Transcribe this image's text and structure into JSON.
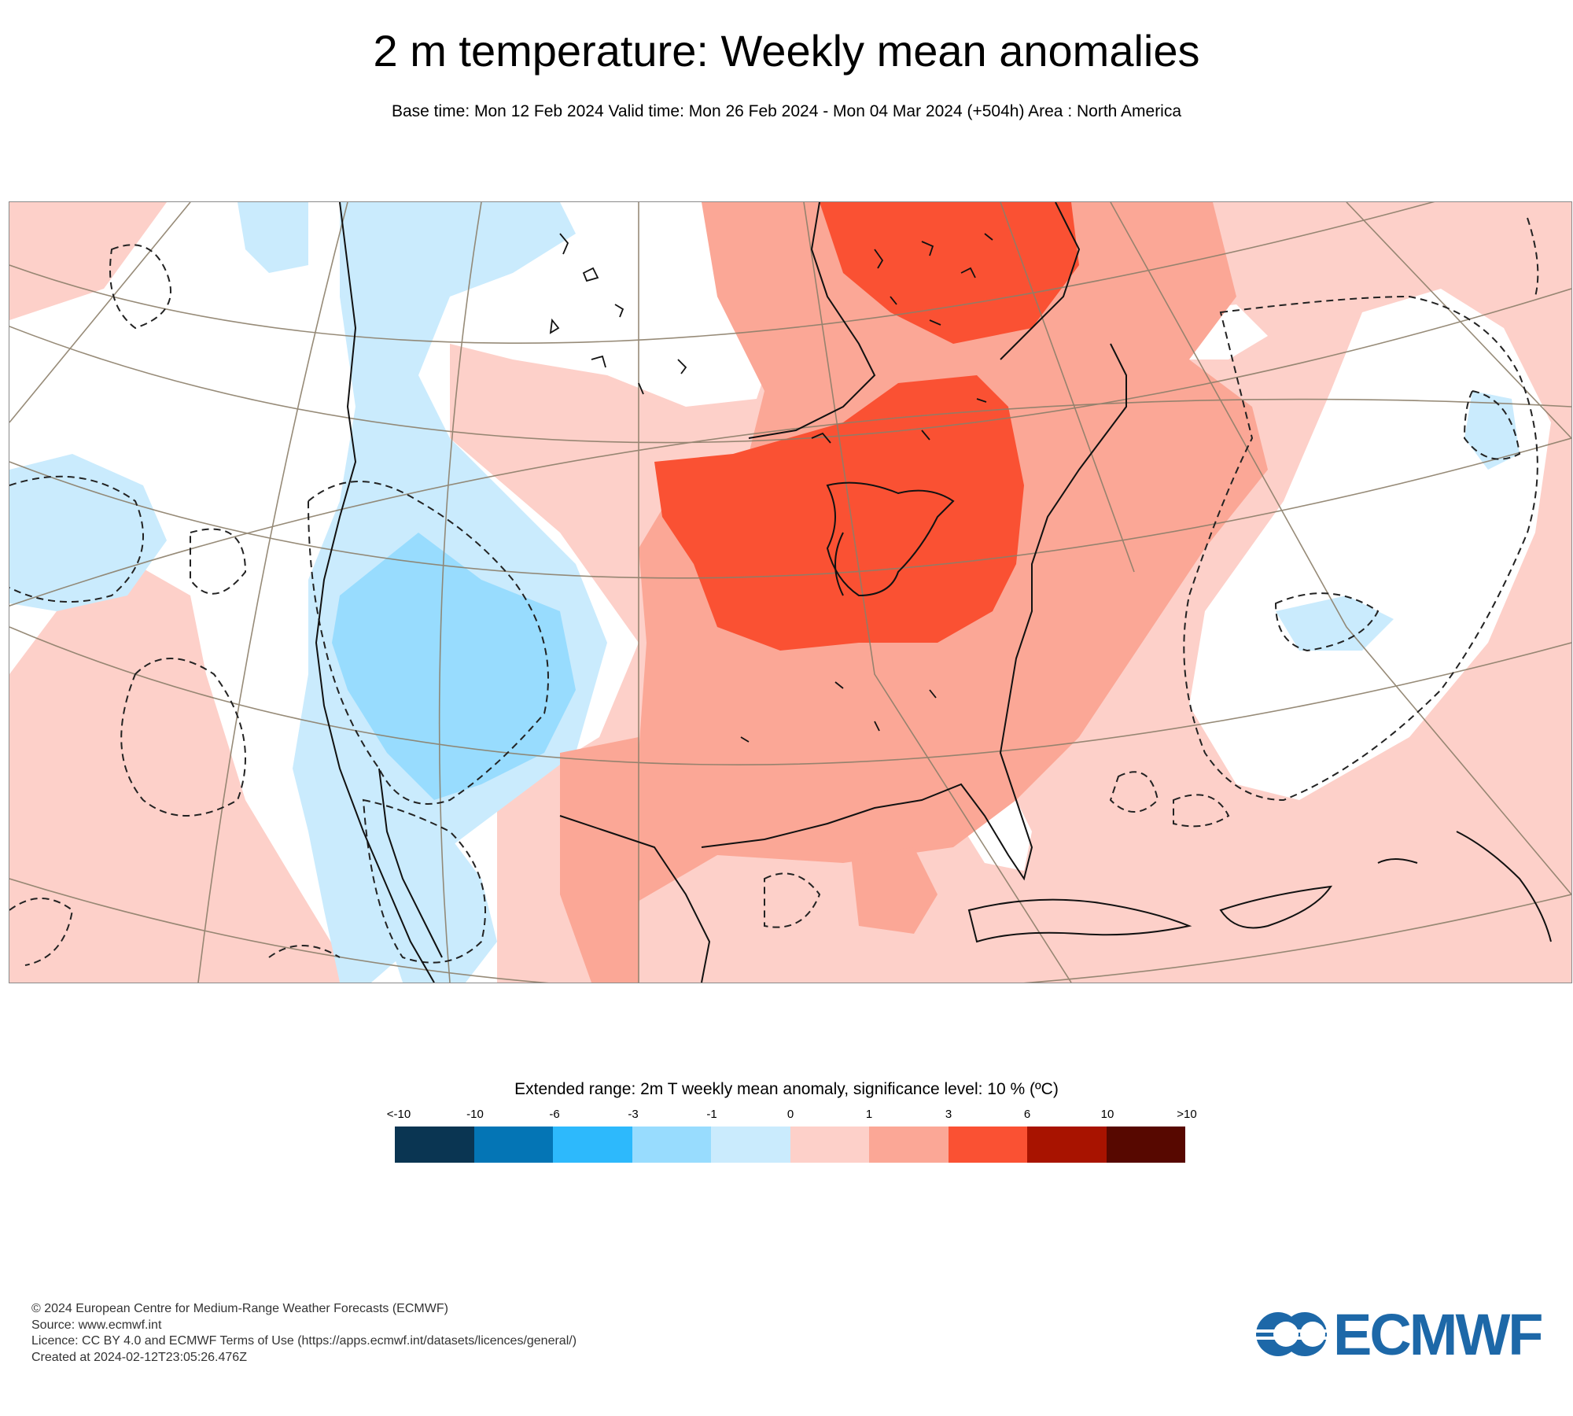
{
  "title": "2 m temperature: Weekly mean anomalies",
  "subtitle": "Base time: Mon 12 Feb 2024 Valid time: Mon 26 Feb 2024 - Mon 04 Mar 2024 (+504h) Area : North America",
  "legend": {
    "title": "Extended range: 2m T weekly mean anomaly, significance level: 10 % (ºC)",
    "ticks": [
      "<-10",
      "-10",
      "-6",
      "-3",
      "-1",
      "0",
      "1",
      "3",
      "6",
      "10",
      ">10"
    ],
    "colors": [
      "#0a3552",
      "#0475b5",
      "#2db9fc",
      "#98dcfe",
      "#caebfd",
      "#fdd0c9",
      "#fba796",
      "#fa5133",
      "#a81300",
      "#570800"
    ]
  },
  "map": {
    "colors": {
      "cold_strong": "#98dcfe",
      "cold_weak": "#caebfd",
      "warm_weak": "#fdd0c9",
      "warm_mid": "#fba796",
      "warm_strong": "#fa5133",
      "coast": "#111111",
      "graticule": "#8c7f6a"
    }
  },
  "footer": {
    "line1": "© 2024 European Centre for Medium-Range Weather Forecasts (ECMWF)",
    "line2": "Source: www.ecmwf.int",
    "line3": "Licence: CC BY 4.0 and ECMWF Terms of Use (https://apps.ecmwf.int/datasets/licences/general/)",
    "line4": "Created at 2024-02-12T23:05:26.476Z"
  },
  "logo": {
    "text": "ECMWF",
    "icon": "ecmwf-logo-icon"
  }
}
